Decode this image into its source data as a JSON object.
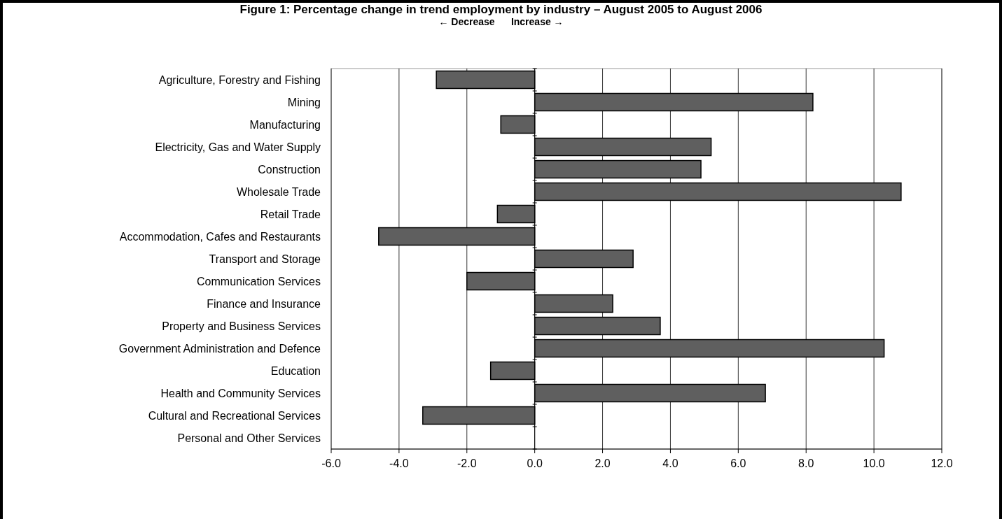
{
  "chart_data": {
    "type": "bar",
    "orientation": "horizontal",
    "title": "Figure 1: Percentage change in trend employment by industry – August 2005 to August 2006",
    "subtitle": "← Decrease      Increase →",
    "categories": [
      "Agriculture, Forestry and Fishing",
      "Mining",
      "Manufacturing",
      "Electricity, Gas and Water Supply",
      "Construction",
      "Wholesale Trade",
      "Retail Trade",
      "Accommodation, Cafes and Restaurants",
      "Transport and Storage",
      "Communication Services",
      "Finance and Insurance",
      "Property and Business Services",
      "Government Administration and Defence",
      "Education",
      "Health and Community Services",
      "Cultural and Recreational Services",
      "Personal and Other Services"
    ],
    "values": [
      -2.9,
      8.2,
      -1.0,
      5.2,
      4.9,
      10.8,
      -1.1,
      -4.6,
      2.9,
      -2.0,
      2.3,
      3.7,
      10.3,
      -1.3,
      6.8,
      -3.3,
      0
    ],
    "color": "#5f5f5f",
    "xlim": [
      -6,
      12
    ],
    "xticks": [
      {
        "value": -6,
        "label": "-6.0"
      },
      {
        "value": -4,
        "label": "-4.0"
      },
      {
        "value": -2,
        "label": "-2.0"
      },
      {
        "value": 0,
        "label": "0.0"
      },
      {
        "value": 2,
        "label": "2.0"
      },
      {
        "value": 4,
        "label": "4.0"
      },
      {
        "value": 6,
        "label": "6.0"
      },
      {
        "value": 8,
        "label": "8.0"
      },
      {
        "value": 10,
        "label": "10.0"
      },
      {
        "value": 12,
        "label": "12.0"
      }
    ],
    "grid": "x"
  }
}
